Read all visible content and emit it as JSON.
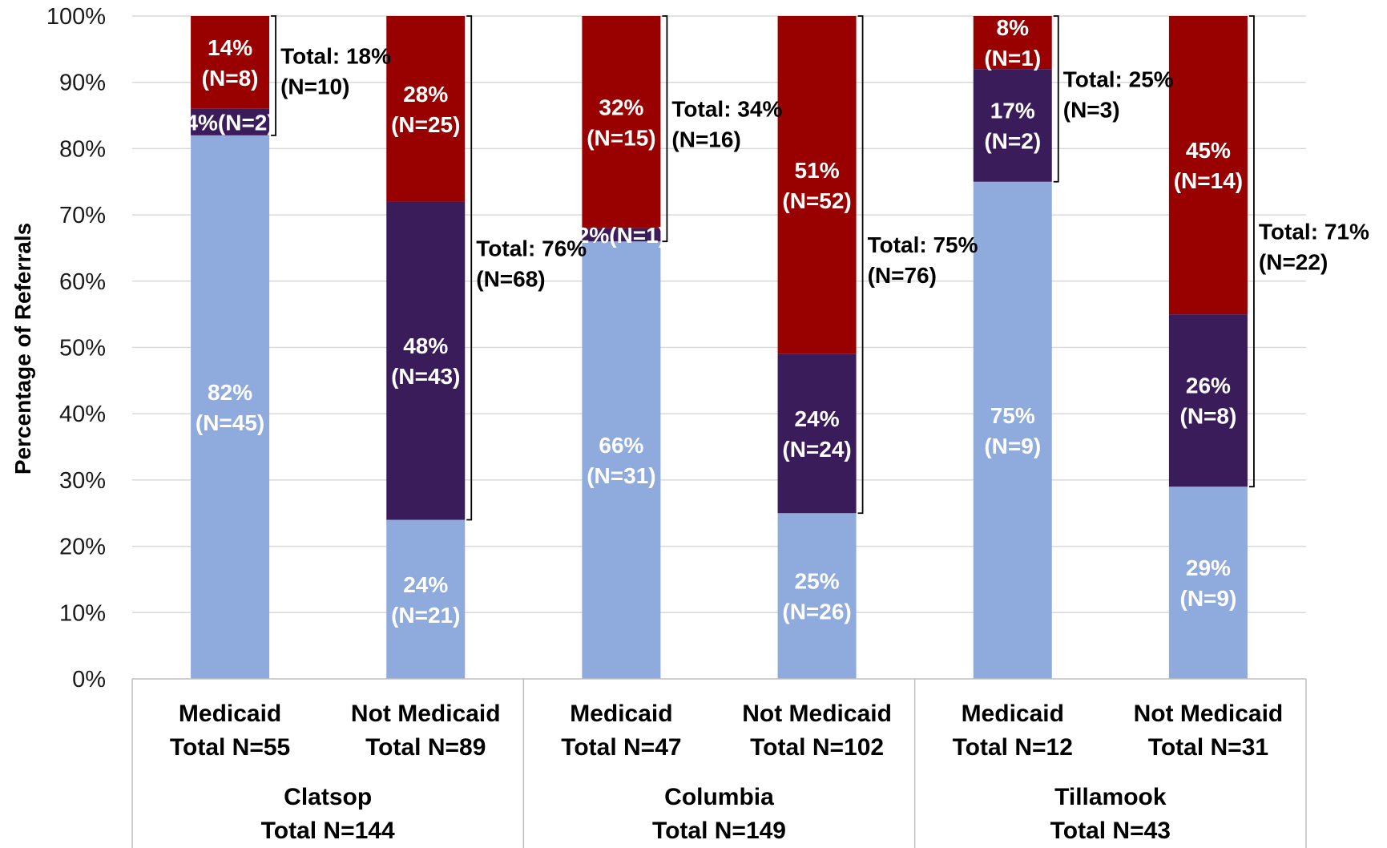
{
  "chart_data": {
    "type": "bar",
    "stacked": true,
    "normalized": true,
    "ylabel": "Percentage of Referrals",
    "ylim": [
      0,
      100
    ],
    "yticks": [
      "0%",
      "10%",
      "20%",
      "30%",
      "40%",
      "50%",
      "60%",
      "70%",
      "80%",
      "90%",
      "100%"
    ],
    "grid": true,
    "colors": [
      "#8faadc",
      "#3b1c5a",
      "#990000"
    ],
    "label_colors": [
      "#ffffff",
      "#ffffff",
      "#ffffff"
    ],
    "groups": [
      {
        "name": "Clatsop",
        "total": "Total N=144"
      },
      {
        "name": "Columbia",
        "total": "Total N=149"
      },
      {
        "name": "Tillamook",
        "total": "Total N=43"
      }
    ],
    "bars": [
      {
        "group": 0,
        "category": "Medicaid",
        "total": "Total N=55",
        "values": [
          82,
          4,
          14
        ],
        "labels": [
          [
            "82%",
            "(N=45)"
          ],
          [
            "4%(N=2)"
          ],
          [
            "14%",
            "(N=8)"
          ]
        ],
        "bracket_label": [
          "Total: 18%",
          "(N=10)"
        ]
      },
      {
        "group": 0,
        "category": "Not Medicaid",
        "total": "Total N=89",
        "values": [
          24,
          48,
          28
        ],
        "labels": [
          [
            "24%",
            "(N=21)"
          ],
          [
            "48%",
            "(N=43)"
          ],
          [
            "28%",
            "(N=25)"
          ]
        ],
        "bracket_label": [
          "Total: 76%",
          "(N=68)"
        ]
      },
      {
        "group": 1,
        "category": "Medicaid",
        "total": "Total N=47",
        "values": [
          66,
          2,
          32
        ],
        "labels": [
          [
            "66%",
            "(N=31)"
          ],
          [
            "2%(N=1)"
          ],
          [
            "32%",
            "(N=15)"
          ]
        ],
        "bracket_label": [
          "Total: 34%",
          "(N=16)"
        ]
      },
      {
        "group": 1,
        "category": "Not Medicaid",
        "total": "Total N=102",
        "values": [
          25,
          24,
          51
        ],
        "labels": [
          [
            "25%",
            "(N=26)"
          ],
          [
            "24%",
            "(N=24)"
          ],
          [
            "51%",
            "(N=52)"
          ]
        ],
        "bracket_label": [
          "Total: 75%",
          "(N=76)"
        ]
      },
      {
        "group": 2,
        "category": "Medicaid",
        "total": "Total N=12",
        "values": [
          75,
          17,
          8
        ],
        "labels": [
          [
            "75%",
            "(N=9)"
          ],
          [
            "17%",
            "(N=2)"
          ],
          [
            "8%",
            "(N=1)"
          ]
        ],
        "bracket_label": [
          "Total: 25%",
          "(N=3)"
        ]
      },
      {
        "group": 2,
        "category": "Not Medicaid",
        "total": "Total N=31",
        "values": [
          29,
          26,
          45
        ],
        "labels": [
          [
            "29%",
            "(N=9)"
          ],
          [
            "26%",
            "(N=8)"
          ],
          [
            "45%",
            "(N=14)"
          ]
        ],
        "bracket_label": [
          "Total: 71%",
          "(N=22)"
        ]
      }
    ]
  }
}
